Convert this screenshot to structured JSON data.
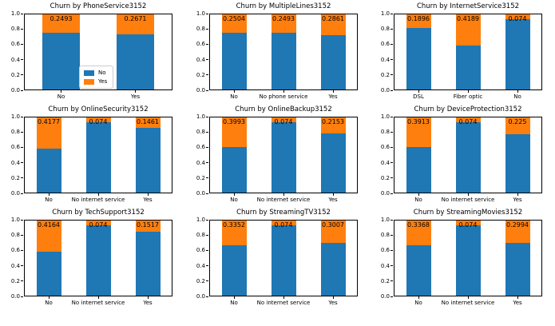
{
  "colors": {
    "no": "#1f77b4",
    "yes": "#ff7f0e",
    "axis": "#000000",
    "legend_border": "#cccccc"
  },
  "legend": {
    "items": [
      {
        "label": "No",
        "color": "#1f77b4"
      },
      {
        "label": "Yes",
        "color": "#ff7f0e"
      }
    ]
  },
  "chart_data": [
    {
      "type": "bar",
      "stacked": true,
      "title": "Churn by PhoneService3152",
      "categories": [
        "No",
        "Yes"
      ],
      "series": [
        {
          "name": "No",
          "values": [
            0.7507,
            0.7329
          ]
        },
        {
          "name": "Yes",
          "values": [
            0.2493,
            0.2671
          ]
        }
      ],
      "bar_labels": [
        "0.2493",
        "0.2671"
      ],
      "ylim": [
        0,
        1
      ],
      "ytick_labels": [
        "1.0",
        "0.8",
        "0.6",
        "0.4",
        "0.2",
        "0.0"
      ],
      "show_legend": true
    },
    {
      "type": "bar",
      "stacked": true,
      "title": "Churn by MultipleLines3152",
      "categories": [
        "No",
        "No phone service",
        "Yes"
      ],
      "series": [
        {
          "name": "No",
          "values": [
            0.7496,
            0.7507,
            0.7139
          ]
        },
        {
          "name": "Yes",
          "values": [
            0.2504,
            0.2493,
            0.2861
          ]
        }
      ],
      "bar_labels": [
        "0.2504",
        "0.2493",
        "0.2861"
      ],
      "ylim": [
        0,
        1
      ],
      "ytick_labels": [
        "1.0",
        "0.8",
        "0.6",
        "0.4",
        "0.2",
        "0.0"
      ],
      "show_legend": false
    },
    {
      "type": "bar",
      "stacked": true,
      "title": "Churn by InternetService3152",
      "categories": [
        "DSL",
        "Fiber optic",
        "No"
      ],
      "series": [
        {
          "name": "No",
          "values": [
            0.8104,
            0.5811,
            0.926
          ]
        },
        {
          "name": "Yes",
          "values": [
            0.1896,
            0.4189,
            0.074
          ]
        }
      ],
      "bar_labels": [
        "0.1896",
        "0.4189",
        "0.074"
      ],
      "ylim": [
        0,
        1
      ],
      "ytick_labels": [
        "1.0",
        "0.8",
        "0.6",
        "0.4",
        "0.2",
        "0.0"
      ],
      "show_legend": false
    },
    {
      "type": "bar",
      "stacked": true,
      "title": "Churn by OnlineSecurity3152",
      "categories": [
        "No",
        "No internet service",
        "Yes"
      ],
      "series": [
        {
          "name": "No",
          "values": [
            0.5823,
            0.926,
            0.8539
          ]
        },
        {
          "name": "Yes",
          "values": [
            0.4177,
            0.074,
            0.1461
          ]
        }
      ],
      "bar_labels": [
        "0.4177",
        "0.074",
        "0.1461"
      ],
      "ylim": [
        0,
        1
      ],
      "ytick_labels": [
        "1.0",
        "0.8",
        "0.6",
        "0.4",
        "0.2",
        "0.0"
      ],
      "show_legend": false
    },
    {
      "type": "bar",
      "stacked": true,
      "title": "Churn by OnlineBackup3152",
      "categories": [
        "No",
        "No internet service",
        "Yes"
      ],
      "series": [
        {
          "name": "No",
          "values": [
            0.6007,
            0.926,
            0.7847
          ]
        },
        {
          "name": "Yes",
          "values": [
            0.3993,
            0.074,
            0.2153
          ]
        }
      ],
      "bar_labels": [
        "0.3993",
        "0.074",
        "0.2153"
      ],
      "ylim": [
        0,
        1
      ],
      "ytick_labels": [
        "1.0",
        "0.8",
        "0.6",
        "0.4",
        "0.2",
        "0.0"
      ],
      "show_legend": false
    },
    {
      "type": "bar",
      "stacked": true,
      "title": "Churn by DeviceProtection3152",
      "categories": [
        "No",
        "No internet service",
        "Yes"
      ],
      "series": [
        {
          "name": "No",
          "values": [
            0.6087,
            0.926,
            0.775
          ]
        },
        {
          "name": "Yes",
          "values": [
            0.3913,
            0.074,
            0.225
          ]
        }
      ],
      "bar_labels": [
        "0.3913",
        "0.074",
        "0.225"
      ],
      "ylim": [
        0,
        1
      ],
      "ytick_labels": [
        "1.0",
        "0.8",
        "0.6",
        "0.4",
        "0.2",
        "0.0"
      ],
      "show_legend": false
    },
    {
      "type": "bar",
      "stacked": true,
      "title": "Churn by TechSupport3152",
      "categories": [
        "No",
        "No internet service",
        "Yes"
      ],
      "series": [
        {
          "name": "No",
          "values": [
            0.5836,
            0.926,
            0.8483
          ]
        },
        {
          "name": "Yes",
          "values": [
            0.4164,
            0.074,
            0.1517
          ]
        }
      ],
      "bar_labels": [
        "0.4164",
        "0.074",
        "0.1517"
      ],
      "ylim": [
        0,
        1
      ],
      "ytick_labels": [
        "1.0",
        "0.8",
        "0.6",
        "0.4",
        "0.2",
        "0.0"
      ],
      "show_legend": false
    },
    {
      "type": "bar",
      "stacked": true,
      "title": "Churn by StreamingTV3152",
      "categories": [
        "No",
        "No internet service",
        "Yes"
      ],
      "series": [
        {
          "name": "No",
          "values": [
            0.6648,
            0.926,
            0.6993
          ]
        },
        {
          "name": "Yes",
          "values": [
            0.3352,
            0.074,
            0.3007
          ]
        }
      ],
      "bar_labels": [
        "0.3352",
        "0.074",
        "0.3007"
      ],
      "ylim": [
        0,
        1
      ],
      "ytick_labels": [
        "1.0",
        "0.8",
        "0.6",
        "0.4",
        "0.2",
        "0.0"
      ],
      "show_legend": false
    },
    {
      "type": "bar",
      "stacked": true,
      "title": "Churn by StreamingMovies3152",
      "categories": [
        "No",
        "No internet service",
        "Yes"
      ],
      "series": [
        {
          "name": "No",
          "values": [
            0.6632,
            0.926,
            0.7006
          ]
        },
        {
          "name": "Yes",
          "values": [
            0.3368,
            0.074,
            0.2994
          ]
        }
      ],
      "bar_labels": [
        "0.3368",
        "0.074",
        "0.2994"
      ],
      "ylim": [
        0,
        1
      ],
      "ytick_labels": [
        "1.0",
        "0.8",
        "0.6",
        "0.4",
        "0.2",
        "0.0"
      ],
      "show_legend": false
    }
  ]
}
